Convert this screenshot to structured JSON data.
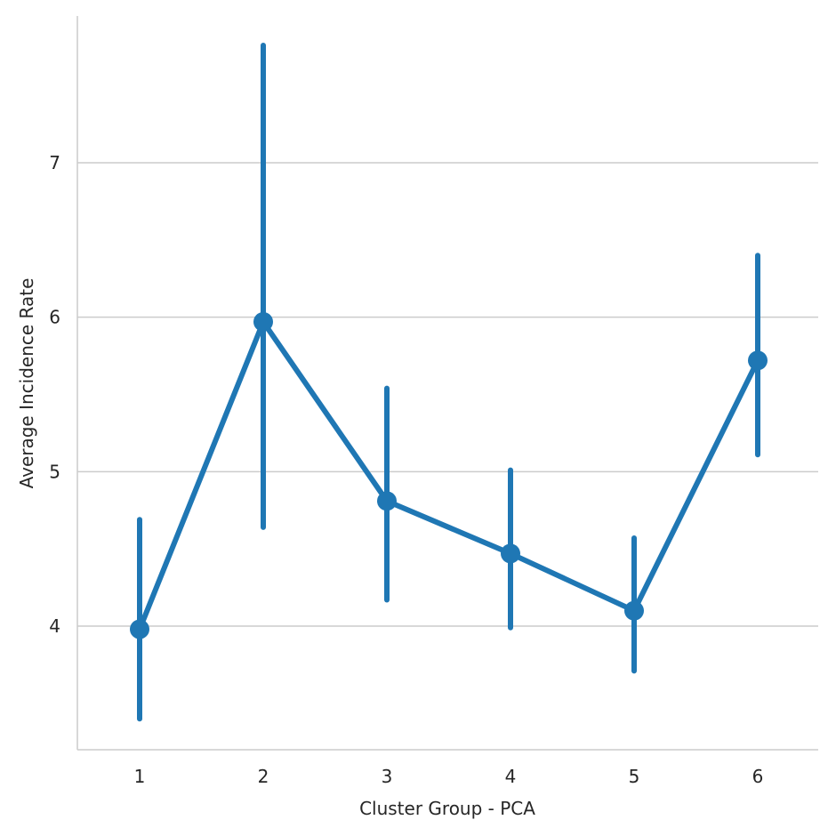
{
  "chart_data": {
    "type": "line",
    "title": "",
    "xlabel": "Cluster Group - PCA",
    "ylabel": "Average Incidence Rate",
    "categories": [
      "1",
      "2",
      "3",
      "4",
      "5",
      "6"
    ],
    "series": [
      {
        "values": [
          3.98,
          5.97,
          4.81,
          4.47,
          4.1,
          5.72
        ],
        "ci_low": [
          3.4,
          4.64,
          4.17,
          3.99,
          3.71,
          5.11
        ],
        "ci_high": [
          4.69,
          7.76,
          5.54,
          5.01,
          4.57,
          6.4
        ]
      }
    ],
    "ylim": [
      3.2,
      7.95
    ],
    "yticks": [
      4,
      5,
      6,
      7
    ],
    "grid": "horizontal",
    "legend": "none",
    "color": "#1f77b4"
  }
}
